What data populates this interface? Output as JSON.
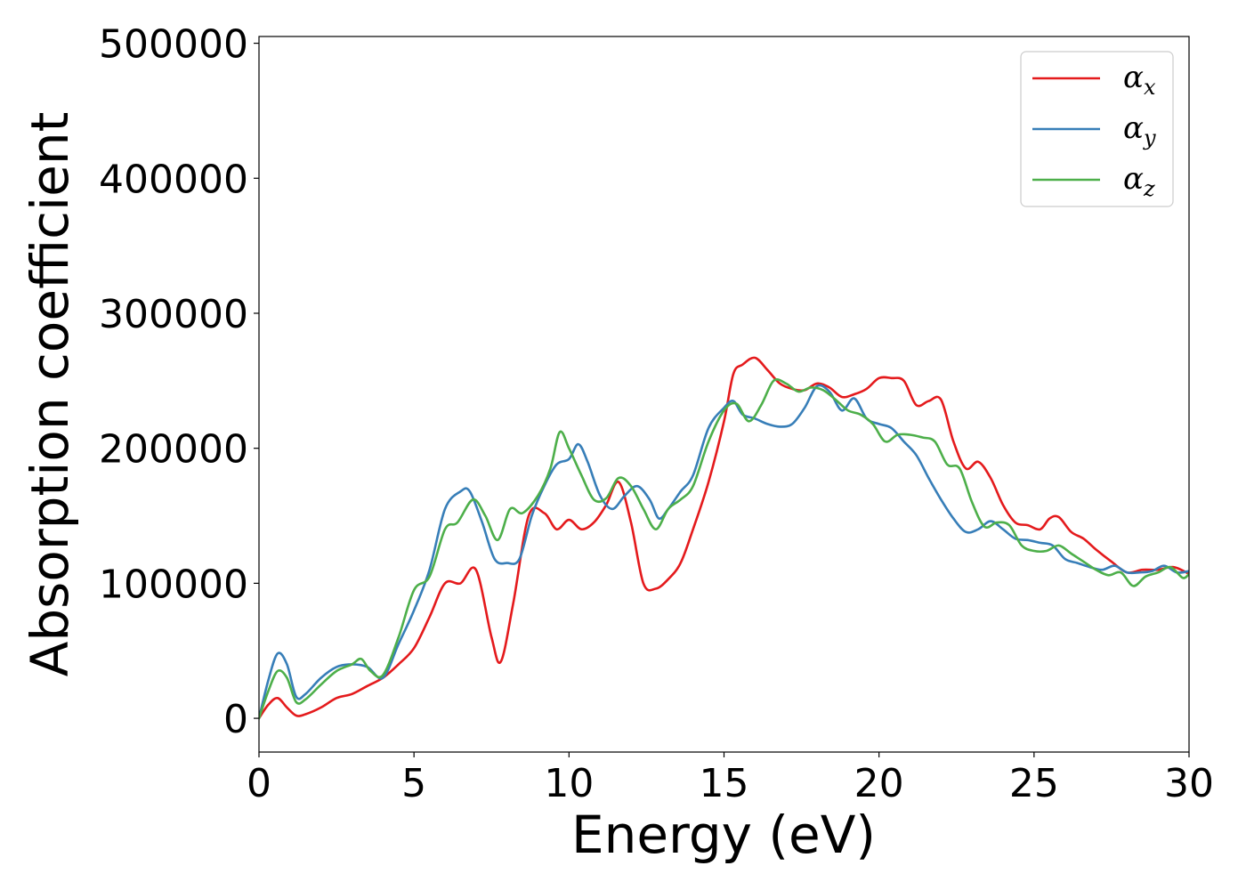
{
  "chart_data": {
    "type": "line",
    "title": "",
    "xlabel": "Energy (eV)",
    "ylabel": "Absorption coefficient",
    "xlim": [
      0,
      30
    ],
    "ylim": [
      -25000,
      505000
    ],
    "xticks": [
      0,
      5,
      10,
      15,
      20,
      25,
      30
    ],
    "yticks": [
      0,
      100000,
      200000,
      300000,
      400000,
      500000
    ],
    "grid": false,
    "legend_position": "top-right",
    "series": [
      {
        "name": "α",
        "subscript": "x",
        "color": "#e41a1c",
        "x": [
          0,
          0.3,
          0.6,
          0.9,
          1.2,
          1.5,
          2.0,
          2.5,
          3.0,
          3.5,
          4.0,
          4.5,
          5.0,
          5.5,
          6.0,
          6.5,
          7.0,
          7.5,
          7.8,
          8.2,
          8.7,
          9.2,
          9.6,
          10.0,
          10.4,
          10.8,
          11.2,
          11.6,
          12.0,
          12.4,
          12.8,
          13.2,
          13.6,
          14.0,
          14.5,
          15.0,
          15.3,
          15.6,
          16.0,
          16.4,
          16.8,
          17.2,
          17.6,
          18.0,
          18.4,
          18.8,
          19.2,
          19.6,
          20.0,
          20.4,
          20.8,
          21.2,
          21.6,
          22.0,
          22.4,
          22.8,
          23.2,
          23.6,
          24.0,
          24.4,
          24.8,
          25.2,
          25.5,
          25.8,
          26.2,
          26.6,
          27.0,
          27.5,
          28.0,
          28.5,
          29.0,
          29.5,
          30.0
        ],
        "values": [
          0,
          10000,
          15000,
          8000,
          2000,
          3000,
          8000,
          15000,
          18000,
          24000,
          30000,
          40000,
          52000,
          75000,
          100000,
          100000,
          110000,
          60000,
          42000,
          85000,
          150000,
          152000,
          140000,
          147000,
          140000,
          145000,
          158000,
          175000,
          145000,
          100000,
          96000,
          103000,
          115000,
          140000,
          175000,
          220000,
          255000,
          262000,
          267000,
          258000,
          248000,
          244000,
          243000,
          248000,
          245000,
          238000,
          240000,
          244000,
          252000,
          252000,
          250000,
          232000,
          235000,
          236000,
          205000,
          185000,
          190000,
          178000,
          158000,
          145000,
          143000,
          140000,
          148000,
          149000,
          138000,
          133000,
          125000,
          116000,
          108000,
          110000,
          110000,
          112000,
          107000
        ]
      },
      {
        "name": "α",
        "subscript": "y",
        "color": "#377eb8",
        "x": [
          0,
          0.3,
          0.6,
          0.9,
          1.2,
          1.5,
          2.0,
          2.5,
          3.0,
          3.5,
          4.0,
          4.5,
          5.0,
          5.5,
          6.0,
          6.5,
          6.8,
          7.2,
          7.6,
          8.0,
          8.4,
          8.8,
          9.2,
          9.6,
          10.0,
          10.3,
          10.6,
          11.0,
          11.4,
          11.8,
          12.2,
          12.6,
          12.9,
          13.2,
          13.6,
          14.0,
          14.5,
          15.0,
          15.3,
          15.6,
          16.0,
          16.4,
          16.8,
          17.2,
          17.6,
          18.0,
          18.4,
          18.8,
          19.2,
          19.6,
          20.0,
          20.4,
          20.8,
          21.2,
          21.6,
          22.0,
          22.4,
          22.8,
          23.2,
          23.6,
          24.0,
          24.4,
          24.8,
          25.2,
          25.6,
          26.0,
          26.4,
          26.8,
          27.2,
          27.6,
          28.0,
          28.4,
          28.8,
          29.2,
          29.6,
          30.0
        ],
        "values": [
          0,
          28000,
          48000,
          40000,
          16000,
          18000,
          30000,
          38000,
          40000,
          38000,
          30000,
          55000,
          80000,
          110000,
          155000,
          168000,
          168000,
          145000,
          118000,
          115000,
          118000,
          150000,
          172000,
          188000,
          192000,
          203000,
          190000,
          165000,
          155000,
          165000,
          172000,
          162000,
          148000,
          155000,
          168000,
          180000,
          215000,
          230000,
          235000,
          225000,
          222000,
          218000,
          216000,
          218000,
          230000,
          246000,
          242000,
          228000,
          237000,
          222000,
          218000,
          215000,
          205000,
          195000,
          178000,
          162000,
          148000,
          138000,
          140000,
          146000,
          140000,
          133000,
          132000,
          130000,
          128000,
          118000,
          115000,
          112000,
          110000,
          113000,
          108000,
          108000,
          109000,
          113000,
          108000,
          109000
        ]
      },
      {
        "name": "α",
        "subscript": "z",
        "color": "#4daf4a",
        "x": [
          0,
          0.3,
          0.6,
          0.9,
          1.2,
          1.5,
          2.0,
          2.5,
          3.0,
          3.3,
          3.6,
          4.0,
          4.5,
          5.0,
          5.5,
          6.0,
          6.4,
          6.9,
          7.3,
          7.7,
          8.1,
          8.5,
          9.0,
          9.4,
          9.7,
          10.0,
          10.4,
          10.8,
          11.2,
          11.6,
          12.0,
          12.4,
          12.8,
          13.2,
          13.6,
          14.0,
          14.5,
          15.0,
          15.4,
          15.8,
          16.2,
          16.6,
          17.0,
          17.4,
          17.8,
          18.2,
          18.6,
          19.0,
          19.4,
          19.8,
          20.2,
          20.6,
          21.0,
          21.4,
          21.8,
          22.2,
          22.6,
          23.0,
          23.4,
          23.8,
          24.2,
          24.6,
          25.0,
          25.4,
          25.8,
          26.2,
          26.6,
          27.0,
          27.4,
          27.8,
          28.2,
          28.6,
          29.0,
          29.4,
          29.8,
          30.0
        ],
        "values": [
          0,
          20000,
          35000,
          30000,
          12000,
          14000,
          25000,
          35000,
          40000,
          44000,
          35000,
          32000,
          60000,
          95000,
          105000,
          140000,
          145000,
          162000,
          150000,
          132000,
          155000,
          152000,
          165000,
          185000,
          212000,
          200000,
          180000,
          162000,
          163000,
          178000,
          172000,
          155000,
          140000,
          155000,
          162000,
          172000,
          205000,
          228000,
          233000,
          220000,
          232000,
          250000,
          248000,
          242000,
          245000,
          243000,
          236000,
          228000,
          225000,
          218000,
          205000,
          210000,
          210000,
          208000,
          205000,
          188000,
          185000,
          160000,
          142000,
          145000,
          143000,
          128000,
          124000,
          124000,
          128000,
          122000,
          116000,
          110000,
          106000,
          108000,
          98000,
          105000,
          108000,
          112000,
          104000,
          107000
        ]
      }
    ]
  }
}
